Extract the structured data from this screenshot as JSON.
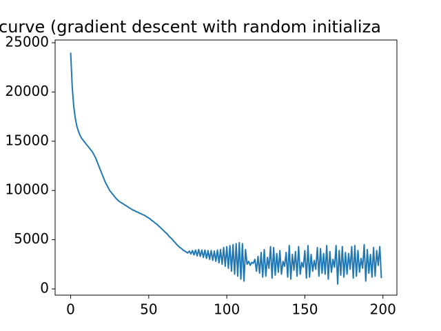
{
  "chart_data": {
    "type": "line",
    "title": "curve (gradient descent with random initializa",
    "x": [
      0,
      1,
      2,
      3,
      4,
      5,
      6,
      7,
      8,
      9,
      10,
      11,
      12,
      13,
      14,
      15,
      16,
      17,
      18,
      19,
      20,
      21,
      22,
      23,
      24,
      25,
      26,
      27,
      28,
      29,
      30,
      31,
      32,
      33,
      34,
      35,
      36,
      37,
      38,
      39,
      40,
      41,
      42,
      43,
      44,
      45,
      46,
      47,
      48,
      49,
      50,
      51,
      52,
      53,
      54,
      55,
      56,
      57,
      58,
      59,
      60,
      61,
      62,
      63,
      64,
      65,
      66,
      67,
      68,
      69,
      70,
      71,
      72,
      73,
      74,
      75,
      76,
      77,
      78,
      79,
      80,
      81,
      82,
      83,
      84,
      85,
      86,
      87,
      88,
      89,
      90,
      91,
      92,
      93,
      94,
      95,
      96,
      97,
      98,
      99,
      100,
      101,
      102,
      103,
      104,
      105,
      106,
      107,
      108,
      109,
      110,
      111,
      112,
      113,
      114,
      115,
      116,
      117,
      118,
      119,
      120,
      121,
      122,
      123,
      124,
      125,
      126,
      127,
      128,
      129,
      130,
      131,
      132,
      133,
      134,
      135,
      136,
      137,
      138,
      139,
      140,
      141,
      142,
      143,
      144,
      145,
      146,
      147,
      148,
      149,
      150,
      151,
      152,
      153,
      154,
      155,
      156,
      157,
      158,
      159,
      160,
      161,
      162,
      163,
      164,
      165,
      166,
      167,
      168,
      169,
      170,
      171,
      172,
      173,
      174,
      175,
      176,
      177,
      178,
      179,
      180,
      181,
      182,
      183,
      184,
      185,
      186,
      187,
      188,
      189,
      190,
      191,
      192,
      193,
      194,
      195,
      196,
      197,
      198,
      199
    ],
    "series": [
      {
        "color": "#1f77b4",
        "values": [
          24000,
          20500,
          18500,
          17300,
          16500,
          16000,
          15600,
          15300,
          15100,
          14900,
          14700,
          14500,
          14300,
          14100,
          13900,
          13600,
          13300,
          12900,
          12500,
          12100,
          11700,
          11300,
          10900,
          10600,
          10300,
          10000,
          9800,
          9600,
          9400,
          9200,
          9050,
          8900,
          8800,
          8700,
          8600,
          8500,
          8400,
          8300,
          8200,
          8100,
          8000,
          7950,
          7850,
          7800,
          7700,
          7650,
          7550,
          7500,
          7400,
          7300,
          7200,
          7100,
          6950,
          6850,
          6700,
          6600,
          6450,
          6300,
          6150,
          6000,
          5850,
          5700,
          5550,
          5350,
          5200,
          5050,
          4850,
          4700,
          4500,
          4350,
          4200,
          4100,
          3950,
          3850,
          3750,
          3650,
          3850,
          3550,
          3900,
          3450,
          3950,
          3350,
          4000,
          3300,
          3950,
          3200,
          3950,
          3100,
          3900,
          3000,
          3900,
          2900,
          3850,
          2800,
          3950,
          2650,
          4000,
          2500,
          4200,
          2300,
          4300,
          2100,
          4400,
          1800,
          4500,
          1500,
          4600,
          1300,
          4700,
          1000,
          4600,
          800,
          4000,
          2500,
          2800,
          2400,
          2700,
          2600,
          3000,
          1800,
          3300,
          1600,
          3700,
          1200,
          4000,
          1300,
          3200,
          2100,
          4300,
          1100,
          4200,
          1400,
          3600,
          1700,
          3900,
          1500,
          2800,
          2300,
          3700,
          1200,
          4400,
          1000,
          3500,
          1900,
          3800,
          1300,
          4300,
          1500,
          2700,
          2200,
          3900,
          1100,
          4400,
          1200,
          3500,
          1800,
          2900,
          2000,
          4200,
          1300,
          4100,
          1600,
          3600,
          1500,
          4400,
          1000,
          3800,
          1700,
          3000,
          2200,
          4400,
          500,
          3900,
          1400,
          4300,
          1200,
          3700,
          1500,
          3600,
          2000,
          4300,
          1100,
          4400,
          1300,
          3900,
          1700,
          3100,
          2100,
          4500,
          800,
          4000,
          1600,
          3500,
          1200,
          4200,
          1300,
          3900,
          2400,
          4300,
          1100
        ]
      }
    ],
    "xlim": [
      -9.95,
      208.95
    ],
    "xticks": [
      0,
      50,
      100,
      150,
      200
    ],
    "ylim": [
      -630,
      25280
    ],
    "yticks": [
      0,
      5000,
      10000,
      15000,
      20000,
      25000
    ]
  }
}
